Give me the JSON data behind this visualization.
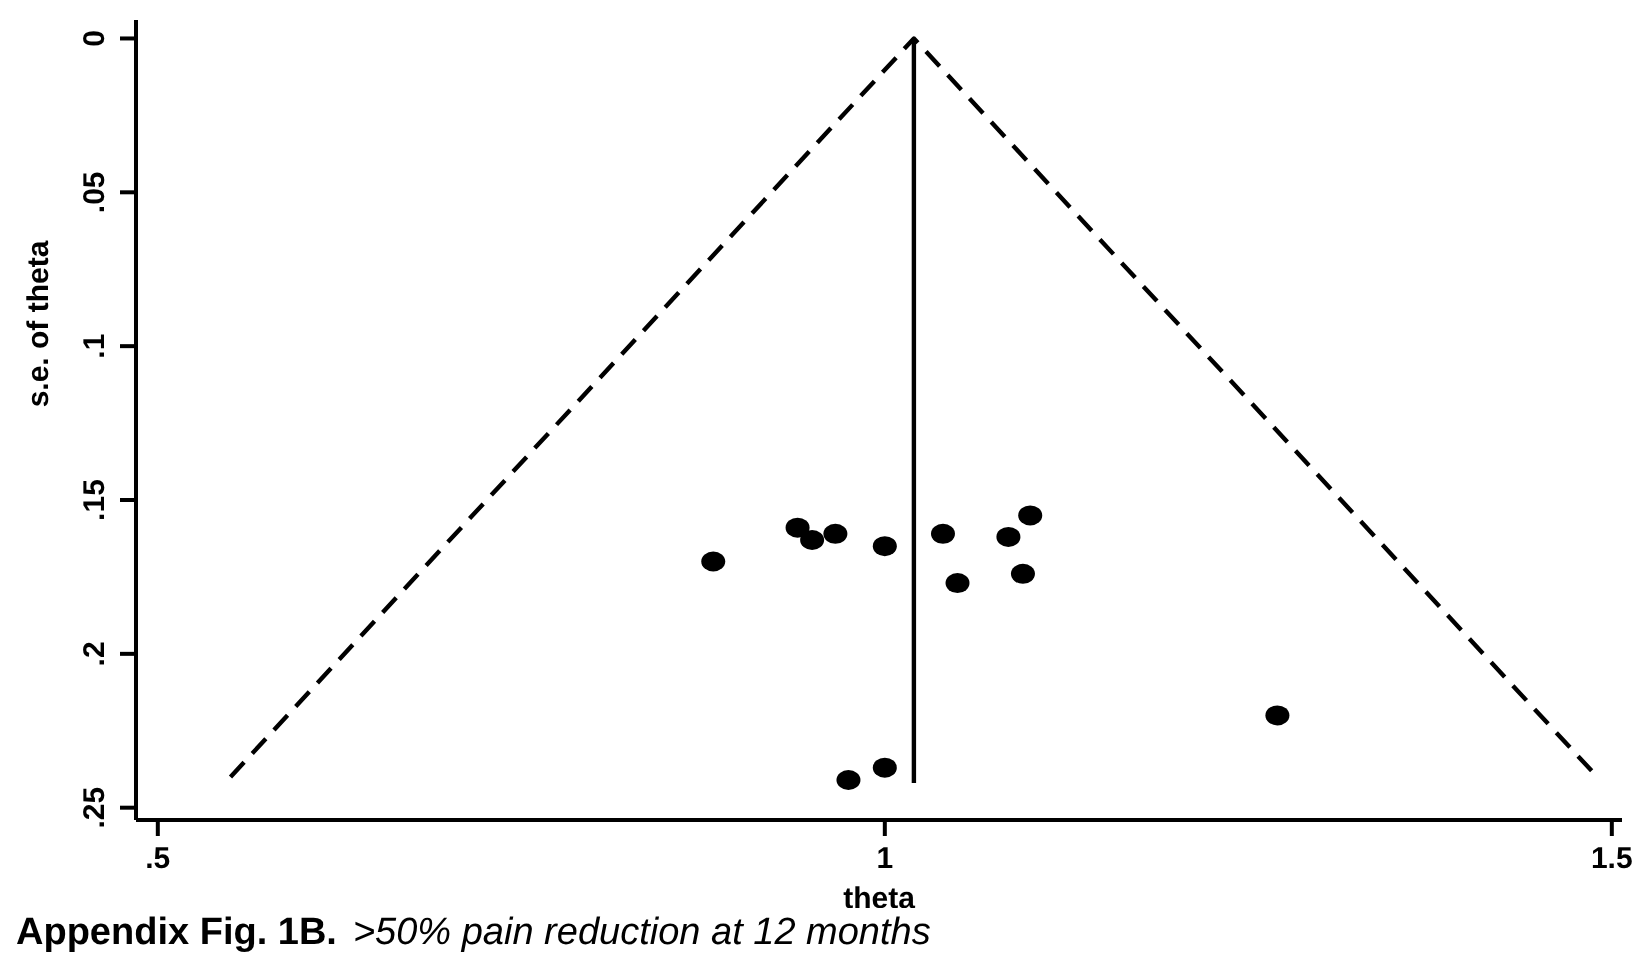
{
  "chart_data": {
    "type": "scatter",
    "xlabel": "theta",
    "ylabel": "s.e. of theta",
    "annotations": [
      "Appendix Fig. 1B.",
      ">50% pain reduction at 12 months"
    ],
    "xlim": [
      0.485,
      1.507
    ],
    "xticks": [
      {
        "value": 0.5,
        "label": ".5"
      },
      1,
      1.5
    ],
    "ylim": [
      0.254,
      -0.006
    ],
    "yticks": [
      0,
      {
        "value": 0.05,
        "label": ".05"
      },
      {
        "value": 0.1,
        "label": ".1"
      },
      {
        "value": 0.15,
        "label": ".15"
      },
      {
        "value": 0.2,
        "label": ".2"
      },
      {
        "value": 0.25,
        "label": ".25"
      }
    ],
    "grid": false,
    "series": [
      {
        "type": "line",
        "color": "#000000",
        "line_style": "dashed",
        "marker": "none",
        "x": [
          0.55,
          1.02,
          1.49
        ],
        "values": [
          0.24,
          0,
          0.24
        ]
      },
      {
        "type": "line",
        "color": "#000000",
        "line_style": "solid",
        "marker": "none",
        "x": [
          1.02,
          1.02
        ],
        "values": [
          0,
          0.242
        ]
      },
      {
        "color": "#000000",
        "marker": "circle",
        "x": [
          0.882,
          0.94,
          0.95,
          0.966,
          1.0,
          1.04,
          1.05,
          1.085,
          1.095,
          1.1,
          1.27,
          0.975,
          1.0
        ],
        "values": [
          0.17,
          0.159,
          0.163,
          0.161,
          0.165,
          0.161,
          0.177,
          0.162,
          0.174,
          0.155,
          0.22,
          0.241,
          0.237
        ]
      }
    ]
  }
}
